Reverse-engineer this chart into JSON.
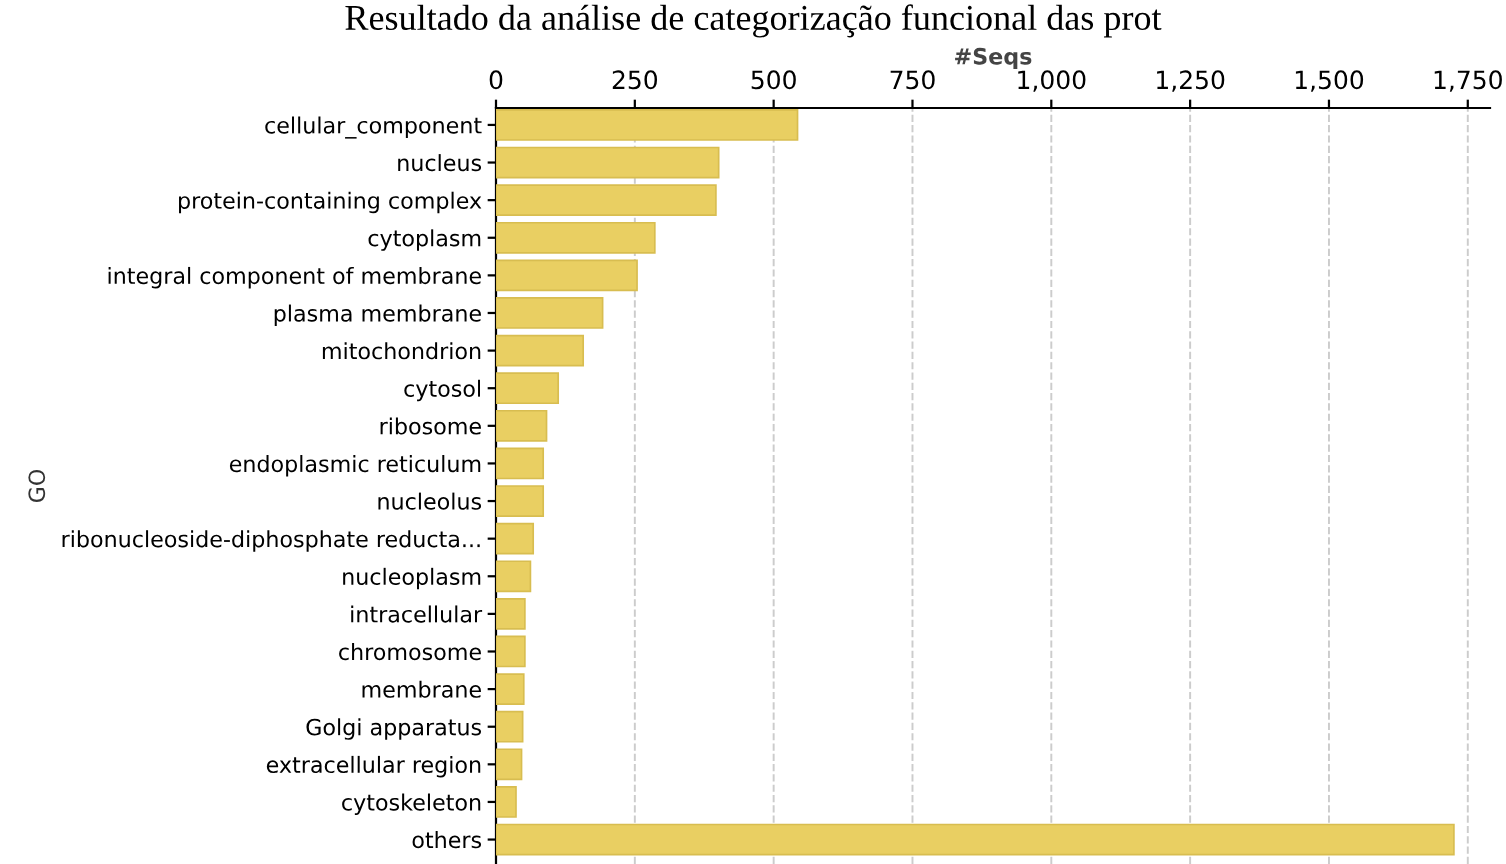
{
  "chart_data": {
    "type": "bar",
    "orientation": "horizontal",
    "title": "Resultado da análise de categorização funcional das prot",
    "xlabel": "#Seqs",
    "ylabel": "GO",
    "categories": [
      "cellular_component",
      "nucleus",
      "protein-containing complex",
      "cytoplasm",
      "integral component of membrane",
      "plasma membrane",
      "mitochondrion",
      "cytosol",
      "ribosome",
      "endoplasmic reticulum",
      "nucleolus",
      "ribonucleoside-diphosphate reducta...",
      "nucleoplasm",
      "intracellular",
      "chromosome",
      "membrane",
      "Golgi apparatus",
      "extracellular region",
      "cytoskeleton",
      "others"
    ],
    "values": [
      543,
      401,
      396,
      286,
      254,
      192,
      157,
      112,
      91,
      85,
      85,
      67,
      62,
      52,
      52,
      50,
      48,
      46,
      36,
      1725
    ],
    "color": "#e9cf62",
    "xlim": [
      0,
      1790
    ],
    "xticks": [
      0,
      250,
      500,
      750,
      {
        "value": 1000,
        "label": "1,000"
      },
      {
        "value": 1250,
        "label": "1,250"
      },
      {
        "value": 1500,
        "label": "1,500"
      },
      {
        "value": 1750,
        "label": "1,750"
      }
    ],
    "grid": "x"
  }
}
